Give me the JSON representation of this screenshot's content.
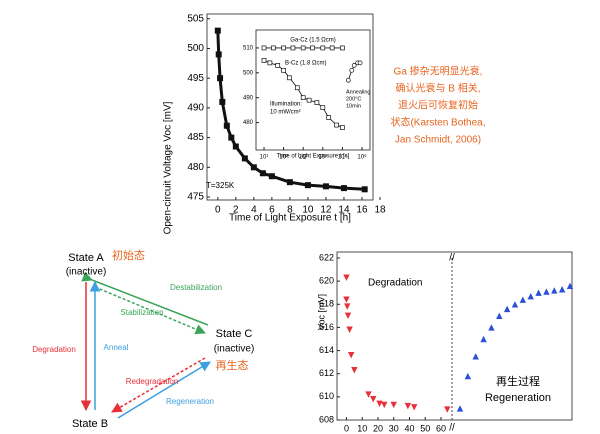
{
  "chart_data": [
    {
      "type": "line",
      "xlabel": "Time of Light Exposure t [h]",
      "ylabel": "Open-circuit Voltage Voc [mV]",
      "xlim": [
        -1.2,
        18
      ],
      "xticks": [
        0,
        2,
        4,
        6,
        8,
        10,
        12,
        14,
        16,
        18
      ],
      "ylim": [
        474.5,
        505.8
      ],
      "yticks": [
        475,
        480,
        485,
        490,
        495,
        500,
        505
      ],
      "annotations": [
        "T=325K"
      ],
      "series": [
        {
          "color": "#111111",
          "marker": "square",
          "x": [
            0,
            0.1,
            0.25,
            0.5,
            1,
            1.5,
            2,
            3,
            4,
            5,
            6,
            8,
            10,
            12,
            14,
            16.3
          ],
          "values": [
            503,
            499,
            495,
            491,
            487,
            485,
            483.5,
            481.5,
            480,
            479,
            478.5,
            477.5,
            477,
            476.8,
            476.5,
            476.3
          ]
        }
      ]
    },
    {
      "type": "line",
      "xscale": "log",
      "xlabel": "Time of Light Exposure t [s]",
      "xlim": [
        10,
        1000000
      ],
      "xticks": [
        {
          "value": 10,
          "label": "10¹"
        },
        {
          "value": 100,
          "label": "10²"
        },
        {
          "value": 1000,
          "label": "10³"
        },
        {
          "value": 10000,
          "label": "10⁴"
        },
        {
          "value": 100000,
          "label": "10⁵"
        },
        {
          "value": 1000000,
          "label": "10⁶"
        }
      ],
      "ylim": [
        475,
        514
      ],
      "yticks": [
        480,
        490,
        500,
        510
      ],
      "annotations": [
        "Ga-Cz (1.5 Ωcm)",
        "B-Cz (1.8 Ωcm)",
        "Illumination:",
        "10 mW/cm²",
        "Annealing",
        "200°C",
        "10min"
      ],
      "series": [
        {
          "color": "#111111",
          "marker": "square-open",
          "x": [
            10,
            30,
            100,
            300,
            1000,
            3000,
            10000,
            30000,
            100000
          ],
          "values": [
            510,
            510,
            510,
            510,
            510,
            510,
            510,
            510,
            510
          ]
        },
        {
          "color": "#111111",
          "marker": "square-open",
          "x": [
            10,
            20,
            50,
            100,
            200,
            500,
            1000,
            2000,
            5000,
            10000,
            20000,
            50000,
            100000
          ],
          "values": [
            505,
            504,
            503,
            501,
            498,
            494,
            490,
            489,
            488,
            486,
            482,
            479,
            478
          ]
        },
        {
          "color": "#111111",
          "marker": "circle-open",
          "x": [
            200000,
            300000,
            400000,
            600000,
            800000
          ],
          "values": [
            497,
            501,
            503,
            504,
            504
          ]
        }
      ]
    },
    {
      "type": "scatter",
      "ylabel": "Voc [mV]",
      "xlim": [
        -6,
        67
      ],
      "xticks": [
        0,
        10,
        20,
        30,
        40,
        50,
        60
      ],
      "ylim": [
        608,
        622
      ],
      "yticks": [
        608,
        610,
        612,
        614,
        616,
        618,
        620,
        622
      ],
      "annotations": [
        "Degradation",
        "再生过程",
        "Regeneration"
      ],
      "series": [
        {
          "color": "#e8303a",
          "marker": "triangle-down",
          "x": [
            0,
            0,
            0.5,
            1,
            2,
            3,
            5,
            14,
            17,
            21,
            24,
            30,
            39,
            43,
            64
          ],
          "values": [
            620.3,
            618.4,
            617.8,
            617,
            615.8,
            613.6,
            612.3,
            610.2,
            609.8,
            609.4,
            609.3,
            609.3,
            609.2,
            609.1,
            608.9
          ]
        },
        {
          "color": "#2a4fd8",
          "marker": "triangle-up",
          "values": [
            609,
            611.8,
            613.5,
            615,
            616,
            617,
            617.6,
            618,
            618.4,
            618.7,
            619,
            619.1,
            619.2,
            619.3,
            619.6
          ]
        }
      ]
    }
  ],
  "note": {
    "lines": [
      "Ga 掺杂无明显光衰,",
      "确认光衰与 B 相关,",
      "退火后可恢复初始",
      "状态(Karsten Bothea,",
      "Jan Schmidt, 2006)"
    ]
  },
  "diagram": {
    "state_a": "State A",
    "state_a_sub": "(inactive)",
    "state_a_cn": "初始态",
    "state_c": "State C",
    "state_c_sub": "(inactive)",
    "state_c_cn": "再生态",
    "state_b": "State B",
    "destabilization": "Destabilization",
    "stabilization": "Stabilization",
    "degradation": "Degradation",
    "anneal": "Anneal",
    "redegradation": "Redegradation",
    "regeneration": "Regeneration"
  }
}
